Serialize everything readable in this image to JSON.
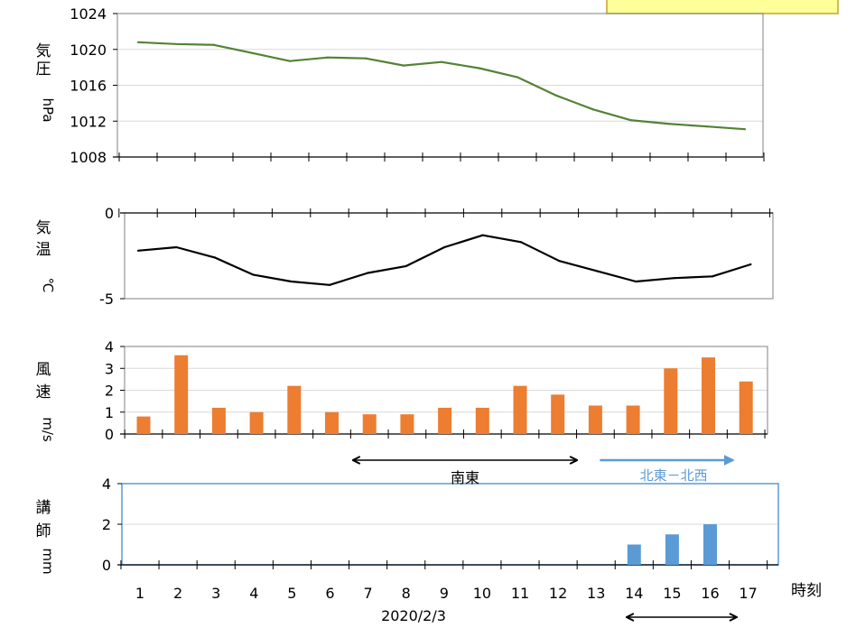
{
  "chart_data": [
    {
      "type": "line",
      "ylabel": [
        "気",
        "圧",
        "hPa"
      ],
      "ylim": [
        1008,
        1024
      ],
      "yticks": [
        1008,
        1012,
        1016,
        1020,
        1024
      ],
      "x": [
        1,
        2,
        3,
        4,
        5,
        6,
        7,
        8,
        9,
        10,
        11,
        12,
        13,
        14,
        15,
        16,
        17
      ],
      "values": [
        1020.8,
        1020.6,
        1020.5,
        1019.6,
        1018.7,
        1019.1,
        1019.0,
        1018.2,
        1018.6,
        1017.9,
        1016.9,
        1014.9,
        1013.3,
        1012.1,
        1011.7,
        1011.4,
        1011.1
      ],
      "color": "#548235"
    },
    {
      "type": "line",
      "ylabel": [
        "気",
        "温",
        "℃"
      ],
      "ylim": [
        -5,
        0
      ],
      "yticks": [
        -5,
        0
      ],
      "x": [
        1,
        2,
        3,
        4,
        5,
        6,
        7,
        8,
        9,
        10,
        11,
        12,
        13,
        14,
        15,
        16,
        17
      ],
      "values": [
        -2.2,
        -2.0,
        -2.6,
        -3.6,
        -4.0,
        -4.2,
        -3.5,
        -3.1,
        -2.0,
        -1.3,
        -1.7,
        -2.8,
        -3.4,
        -4.0,
        -3.8,
        -3.7,
        -3.0
      ],
      "color": "#000000"
    },
    {
      "type": "bar",
      "ylabel": [
        "風",
        "速",
        "m/s"
      ],
      "ylim": [
        0,
        4
      ],
      "yticks": [
        0,
        1,
        2,
        3,
        4
      ],
      "categories": [
        1,
        2,
        3,
        4,
        5,
        6,
        7,
        8,
        9,
        10,
        11,
        12,
        13,
        14,
        15,
        16,
        17
      ],
      "values": [
        0.8,
        3.6,
        1.2,
        1.0,
        2.2,
        1.0,
        0.9,
        0.9,
        1.2,
        1.2,
        2.2,
        1.8,
        1.3,
        1.3,
        3.0,
        3.5,
        2.4
      ],
      "color": "#ED7D31"
    },
    {
      "type": "bar",
      "ylabel": [
        "講",
        "師",
        "mm"
      ],
      "ylim": [
        0,
        4
      ],
      "yticks": [
        0,
        2,
        4
      ],
      "categories": [
        1,
        2,
        3,
        4,
        5,
        6,
        7,
        8,
        9,
        10,
        11,
        12,
        13,
        14,
        15,
        16,
        17
      ],
      "values": [
        0,
        0,
        0,
        0,
        0,
        0,
        0,
        0,
        0,
        0,
        0,
        0,
        0,
        1.0,
        1.5,
        2.0,
        0
      ],
      "color": "#5B9BD5",
      "frame_color": "#5B9BD5"
    }
  ],
  "xaxis": {
    "tick_labels": [
      "1",
      "2",
      "3",
      "4",
      "5",
      "6",
      "7",
      "8",
      "9",
      "10",
      "11",
      "12",
      "13",
      "14",
      "15",
      "16",
      "17"
    ],
    "unit_label": "時刻",
    "date_label": "2020/2/3"
  },
  "annotations": {
    "southeast": {
      "label": "南東",
      "from_hour": 6.6,
      "to_hour": 12.5
    },
    "northeast_northwest": {
      "label": "北東－北西",
      "from_hour": 13.1,
      "to_hour": 16.6,
      "color": "#5B9BD5"
    },
    "bottom_arrow": {
      "from_hour": 13.8,
      "to_hour": 16.7
    }
  },
  "colors": {
    "grid": "#d9d9d9",
    "frame": "#808080",
    "legend_box_border": "#c9a227",
    "legend_box_fill": "#ffff99"
  }
}
